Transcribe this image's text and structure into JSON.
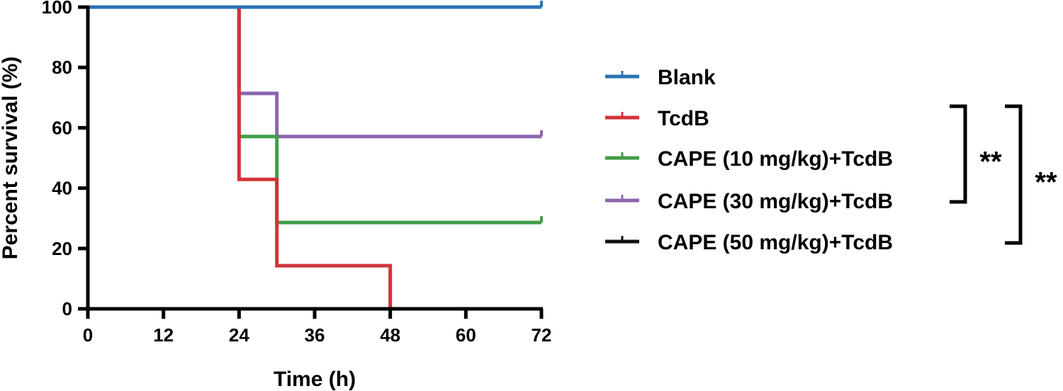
{
  "chart_data": {
    "type": "line",
    "xlabel": "Time (h)",
    "ylabel": "Percent survival (%)",
    "xlim": [
      0,
      72
    ],
    "ylim": [
      0,
      100
    ],
    "xticks": [
      0,
      12,
      24,
      36,
      48,
      60,
      72
    ],
    "yticks": [
      0,
      20,
      40,
      60,
      80,
      100
    ],
    "grid": false,
    "legend_position": "right",
    "series": [
      {
        "name": "Blank",
        "color": "#2c73b4",
        "steps": [
          [
            0,
            100
          ],
          [
            72,
            100
          ]
        ]
      },
      {
        "name": "TcdB",
        "color": "#d0343a",
        "steps": [
          [
            0,
            100
          ],
          [
            24,
            42.9
          ],
          [
            30,
            14.3
          ],
          [
            48,
            0
          ]
        ]
      },
      {
        "name": "CAPE (10 mg/kg)+TcdB",
        "color": "#3f9e47",
        "steps": [
          [
            0,
            100
          ],
          [
            24,
            57.1
          ],
          [
            30,
            28.6
          ],
          [
            72,
            28.6
          ]
        ]
      },
      {
        "name": "CAPE (30 mg/kg)+TcdB",
        "color": "#8c65ae",
        "steps": [
          [
            0,
            100
          ],
          [
            24,
            71.4
          ],
          [
            30,
            57.1
          ],
          [
            72,
            57.1
          ]
        ]
      },
      {
        "name": "CAPE (50 mg/kg)+TcdB",
        "color": "#111111",
        "steps": [
          [
            0,
            100
          ],
          [
            72,
            100
          ]
        ]
      }
    ],
    "annotations": [
      {
        "text": "**",
        "between": [
          "TcdB",
          "CAPE (30 mg/kg)+TcdB"
        ]
      },
      {
        "text": "**",
        "between": [
          "TcdB",
          "CAPE (50 mg/kg)+TcdB"
        ]
      }
    ]
  }
}
